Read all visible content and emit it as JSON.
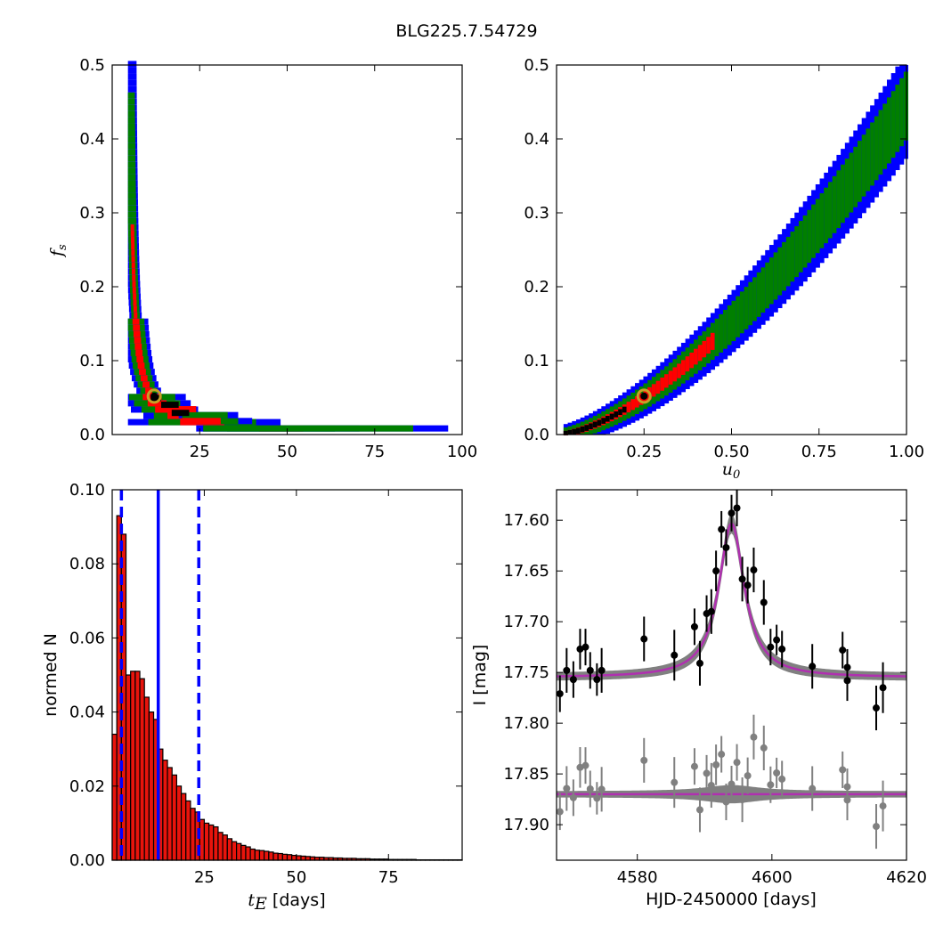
{
  "figure_title": "BLG225.7.54729",
  "colors": {
    "blue": "#0000ff",
    "green": "#007f00",
    "red": "#ff0000",
    "black": "#000000",
    "marker_ring": "#c8a028",
    "hist_fill": "#e8140c",
    "model": "#b030b0",
    "band": "#808080",
    "resid": "#808080"
  },
  "chart_data": [
    {
      "type": "heatmap",
      "panel": "top-left",
      "xlabel": "",
      "ylabel": "f_s",
      "ylabel_parts": {
        "main": "f",
        "sub": "s"
      },
      "xlim": [
        0,
        100
      ],
      "ylim": [
        0,
        0.5
      ],
      "xticks": [
        25,
        50,
        75,
        100
      ],
      "yticks": [
        0.0,
        0.1,
        0.2,
        0.3,
        0.4,
        0.5
      ],
      "xtick_labels": [
        "25",
        "50",
        "75",
        "100"
      ],
      "ytick_labels": [
        "0.0",
        "0.1",
        "0.2",
        "0.3",
        "0.4",
        "0.5"
      ],
      "best_fit": {
        "x": 12,
        "y": 0.052
      },
      "levels": [
        "blue",
        "green",
        "red",
        "black"
      ]
    },
    {
      "type": "heatmap",
      "panel": "top-right",
      "xlabel": "u_0",
      "xlabel_parts": {
        "main": "u",
        "sub": "0"
      },
      "ylabel": "",
      "xlim": [
        0,
        1
      ],
      "ylim": [
        0,
        0.5
      ],
      "xticks": [
        0.25,
        0.5,
        0.75,
        1.0
      ],
      "yticks": [
        0.0,
        0.1,
        0.2,
        0.3,
        0.4,
        0.5
      ],
      "xtick_labels": [
        "0.25",
        "0.50",
        "0.75",
        "1.00"
      ],
      "ytick_labels": [
        "0.0",
        "0.1",
        "0.2",
        "0.3",
        "0.4",
        "0.5"
      ],
      "best_fit": {
        "x": 0.25,
        "y": 0.052
      },
      "levels": [
        "blue",
        "green",
        "red",
        "black"
      ]
    },
    {
      "type": "bar",
      "panel": "bottom-left",
      "xlabel": "t_E [days]",
      "xlabel_parts": {
        "main": "t",
        "sub": "E",
        "rest": " [days]"
      },
      "ylabel": "normed N",
      "xlim": [
        0,
        95
      ],
      "ylim": [
        0,
        0.1
      ],
      "xticks": [
        25,
        50,
        75
      ],
      "yticks": [
        0.0,
        0.02,
        0.04,
        0.06,
        0.08,
        0.1
      ],
      "xtick_labels": [
        "25",
        "50",
        "75"
      ],
      "ytick_labels": [
        "0.00",
        "0.02",
        "0.04",
        "0.06",
        "0.08",
        "0.10"
      ],
      "bin_start": 0,
      "bin_width": 1.25,
      "values": [
        0.034,
        0.093,
        0.088,
        0.05,
        0.051,
        0.051,
        0.049,
        0.044,
        0.04,
        0.038,
        0.03,
        0.027,
        0.025,
        0.023,
        0.02,
        0.018,
        0.016,
        0.014,
        0.013,
        0.011,
        0.01,
        0.0095,
        0.009,
        0.0075,
        0.0068,
        0.0058,
        0.005,
        0.0045,
        0.004,
        0.0036,
        0.003,
        0.0027,
        0.0026,
        0.0024,
        0.0022,
        0.0019,
        0.0018,
        0.0016,
        0.0015,
        0.0013,
        0.0012,
        0.0011,
        0.001,
        0.0009,
        0.0008,
        0.0008,
        0.0007,
        0.0007,
        0.0006,
        0.0006,
        0.0005,
        0.0005,
        0.0005,
        0.0004,
        0.0004,
        0.0004,
        0.0003,
        0.0003,
        0.0003,
        0.0003,
        0.0002,
        0.0002,
        0.0002,
        0.0002,
        0.0002,
        0.0002,
        0.0001,
        0.0001,
        0.0001,
        0.0001,
        0.0001,
        0.0001,
        0.0001,
        0.0001,
        0.0001,
        0.0001
      ],
      "median": 12.5,
      "lower": 2.5,
      "upper": 23.5
    },
    {
      "type": "scatter",
      "panel": "bottom-right",
      "xlabel": "HJD-2450000 [days]",
      "ylabel": "I [mag]",
      "xlim": [
        4568,
        4620
      ],
      "ylim": [
        17.935,
        17.57
      ],
      "xticks": [
        4580,
        4600,
        4620
      ],
      "yticks": [
        17.6,
        17.65,
        17.7,
        17.75,
        17.8,
        17.85,
        17.9
      ],
      "xtick_labels": [
        "4580",
        "4600",
        "4620"
      ],
      "ytick_labels": [
        "17.60",
        "17.65",
        "17.70",
        "17.75",
        "17.80",
        "17.85",
        "17.90"
      ],
      "model": {
        "t0": 4594,
        "baseline": 17.755,
        "peak": 17.603,
        "width": 2.3
      },
      "residual_baseline": 17.87,
      "data": [
        {
          "x": 4568.5,
          "y": 17.771,
          "e": 0.018
        },
        {
          "x": 4569.5,
          "y": 17.748,
          "e": 0.022
        },
        {
          "x": 4570.5,
          "y": 17.757,
          "e": 0.018
        },
        {
          "x": 4571.5,
          "y": 17.727,
          "e": 0.02
        },
        {
          "x": 4572.3,
          "y": 17.725,
          "e": 0.018
        },
        {
          "x": 4573,
          "y": 17.748,
          "e": 0.018
        },
        {
          "x": 4574,
          "y": 17.757,
          "e": 0.016
        },
        {
          "x": 4574.7,
          "y": 17.748,
          "e": 0.022
        },
        {
          "x": 4581,
          "y": 17.717,
          "e": 0.022
        },
        {
          "x": 4585.5,
          "y": 17.733,
          "e": 0.025
        },
        {
          "x": 4588.5,
          "y": 17.705,
          "e": 0.018
        },
        {
          "x": 4589.3,
          "y": 17.741,
          "e": 0.022
        },
        {
          "x": 4590.3,
          "y": 17.692,
          "e": 0.018
        },
        {
          "x": 4591,
          "y": 17.69,
          "e": 0.022
        },
        {
          "x": 4591.7,
          "y": 17.65,
          "e": 0.02
        },
        {
          "x": 4592.5,
          "y": 17.609,
          "e": 0.018
        },
        {
          "x": 4593.2,
          "y": 17.627,
          "e": 0.018
        },
        {
          "x": 4594,
          "y": 17.593,
          "e": 0.018
        },
        {
          "x": 4594.8,
          "y": 17.588,
          "e": 0.018
        },
        {
          "x": 4595.6,
          "y": 17.658,
          "e": 0.022
        },
        {
          "x": 4596.4,
          "y": 17.664,
          "e": 0.018
        },
        {
          "x": 4597.3,
          "y": 17.649,
          "e": 0.022
        },
        {
          "x": 4598.8,
          "y": 17.681,
          "e": 0.022
        },
        {
          "x": 4599.8,
          "y": 17.725,
          "e": 0.018
        },
        {
          "x": 4600.7,
          "y": 17.718,
          "e": 0.015
        },
        {
          "x": 4601.5,
          "y": 17.727,
          "e": 0.018
        },
        {
          "x": 4606,
          "y": 17.744,
          "e": 0.022
        },
        {
          "x": 4610.5,
          "y": 17.728,
          "e": 0.018
        },
        {
          "x": 4611.2,
          "y": 17.745,
          "e": 0.018
        },
        {
          "x": 4611.2,
          "y": 17.758,
          "e": 0.02
        },
        {
          "x": 4615.5,
          "y": 17.785,
          "e": 0.022
        },
        {
          "x": 4616.5,
          "y": 17.765,
          "e": 0.025
        }
      ]
    }
  ]
}
